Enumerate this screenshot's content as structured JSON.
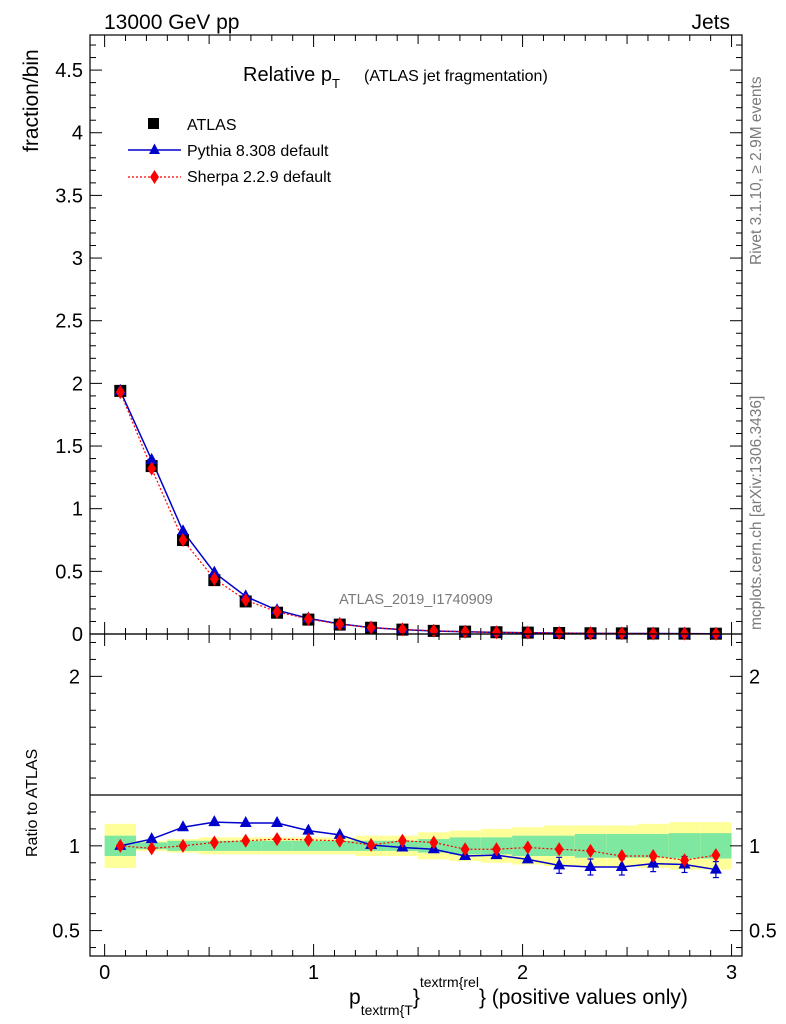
{
  "header": {
    "energy_label": "13000 GeV pp",
    "process_label": "Jets"
  },
  "side_labels": {
    "rivet": "Rivet 3.1.10, ≥ 2.9M events",
    "mcplots": "mcplots.cern.ch [arXiv:1306.3436]"
  },
  "chart_data": {
    "type": "line",
    "title": "Relative p",
    "title_sub": "T",
    "title_note": "(ATLAS jet fragmentation)",
    "analysis_id": "ATLAS_2019_I1740909",
    "ylabel": "fraction/bin",
    "ratio_ylabel": "Ratio to ATLAS",
    "xlabel_main": "p",
    "xlabel_sub": "textrm{T",
    "xlabel_sup": "textrm{rel",
    "xlabel_brace": "}",
    "xlabel_rest": "} (positive values only)",
    "xlim": [
      -0.07,
      3.05
    ],
    "ylim": [
      0,
      4.78
    ],
    "ratio_ylim": [
      0.35,
      2.25
    ],
    "x_ticks": [
      "0",
      "1",
      "2",
      "3"
    ],
    "y_ticks": [
      "0",
      "0.5",
      "1",
      "1.5",
      "2",
      "2.5",
      "3",
      "3.5",
      "4",
      "4.5"
    ],
    "ratio_y_ticks": [
      "0.5",
      "1",
      "2"
    ],
    "legend_position": "top-left",
    "x": [
      0.075,
      0.225,
      0.375,
      0.525,
      0.675,
      0.825,
      0.975,
      1.125,
      1.275,
      1.425,
      1.575,
      1.725,
      1.875,
      2.025,
      2.175,
      2.325,
      2.475,
      2.625,
      2.775,
      2.925
    ],
    "series": [
      {
        "name": "ATLAS",
        "color": "#000000",
        "marker": "square",
        "values": [
          1.94,
          1.34,
          0.75,
          0.43,
          0.26,
          0.17,
          0.115,
          0.075,
          0.05,
          0.035,
          0.025,
          0.019,
          0.014,
          0.011,
          0.008,
          0.006,
          0.005,
          0.004,
          0.003,
          0.0025
        ]
      },
      {
        "name": "Pythia 8.308 default",
        "color": "#0000cc",
        "marker": "triangle",
        "values": [
          1.94,
          1.39,
          0.82,
          0.49,
          0.3,
          0.19,
          0.125,
          0.081,
          0.051,
          0.035,
          0.024,
          0.018,
          0.013,
          0.0102,
          0.0071,
          0.0053,
          0.0044,
          0.0036,
          0.0027,
          0.0021
        ],
        "ratio": [
          1.0,
          1.04,
          1.11,
          1.14,
          1.135,
          1.135,
          1.09,
          1.065,
          1.005,
          0.99,
          0.98,
          0.94,
          0.945,
          0.92,
          0.885,
          0.875,
          0.875,
          0.895,
          0.89,
          0.86
        ]
      },
      {
        "name": "Sherpa 2.2.9 default",
        "color": "#ff0000",
        "marker": "diamond",
        "values": [
          1.93,
          1.32,
          0.75,
          0.44,
          0.27,
          0.177,
          0.12,
          0.078,
          0.051,
          0.036,
          0.026,
          0.018,
          0.013,
          0.011,
          0.0077,
          0.0058,
          0.0047,
          0.0037,
          0.0027,
          0.0023
        ],
        "ratio": [
          1.0,
          0.985,
          1.0,
          1.02,
          1.03,
          1.04,
          1.035,
          1.03,
          1.005,
          1.03,
          1.02,
          0.98,
          0.98,
          0.99,
          0.98,
          0.97,
          0.94,
          0.94,
          0.915,
          0.945
        ]
      }
    ],
    "ratio_bands": {
      "inner_color": "#7fe8a0",
      "outer_color": "#ffff99",
      "inner": [
        0.06,
        0.02,
        0.03,
        0.03,
        0.03,
        0.03,
        0.03,
        0.03,
        0.03,
        0.03,
        0.04,
        0.05,
        0.05,
        0.06,
        0.06,
        0.07,
        0.07,
        0.07,
        0.075,
        0.075
      ],
      "outer": [
        0.13,
        0.03,
        0.04,
        0.05,
        0.05,
        0.05,
        0.05,
        0.05,
        0.06,
        0.06,
        0.08,
        0.09,
        0.1,
        0.11,
        0.12,
        0.12,
        0.12,
        0.13,
        0.14,
        0.14
      ]
    }
  }
}
